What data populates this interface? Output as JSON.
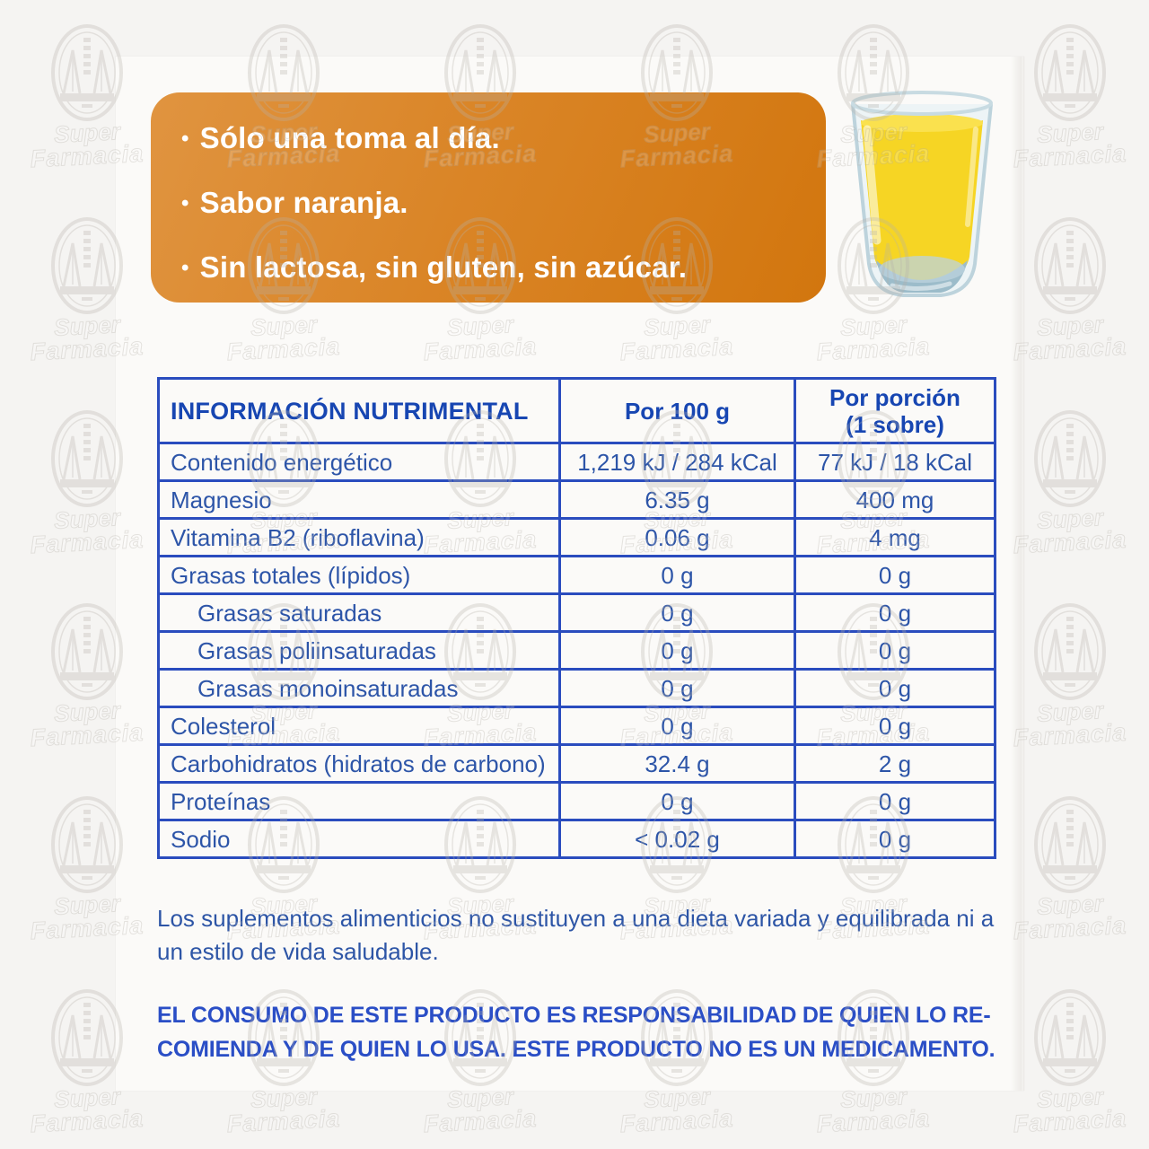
{
  "colors": {
    "accent_orange": "#d77d18",
    "brand_blue": "#2a4cbe",
    "text_blue": "#2d55a8",
    "juice_yellow": "#f6d528"
  },
  "highlights": {
    "bullet": "•",
    "items": [
      "Sólo una toma al día.",
      "Sabor naranja.",
      "Sin lactosa, sin gluten, sin azúcar."
    ]
  },
  "glass": {
    "description": "orange-juice-glass"
  },
  "nutrition_table": {
    "title": "INFORMACIÓN NUTRIMENTAL",
    "col_per_100g": "Por 100 g",
    "col_portion_line1": "Por porción",
    "col_portion_line2": "(1 sobre)",
    "rows": [
      {
        "label": "Contenido energético",
        "per_100g": "1,219 kJ / 284 kCal",
        "per_portion": "77 kJ / 18 kCal"
      },
      {
        "label": "Magnesio",
        "per_100g": "6.35 g",
        "per_portion": "400 mg"
      },
      {
        "label": "Vitamina B2 (riboflavina)",
        "per_100g": "0.06 g",
        "per_portion": "4 mg"
      },
      {
        "label": "Grasas totales (lípidos)",
        "per_100g": "0 g",
        "per_portion": "0 g"
      },
      {
        "label": "Grasas saturadas",
        "per_100g": "0 g",
        "per_portion": "0 g"
      },
      {
        "label": "Grasas poliinsaturadas",
        "per_100g": "0 g",
        "per_portion": "0 g"
      },
      {
        "label": "Grasas monoinsaturadas",
        "per_100g": "0 g",
        "per_portion": "0 g"
      },
      {
        "label": "Colesterol",
        "per_100g": "0 g",
        "per_portion": "0 g"
      },
      {
        "label": "Carbohidratos (hidratos de carbono)",
        "per_100g": "32.4 g",
        "per_portion": "2 g"
      },
      {
        "label": "Proteínas",
        "per_100g": "0 g",
        "per_portion": "0 g"
      },
      {
        "label": "Sodio",
        "per_100g": "< 0.02 g",
        "per_portion": "0 g"
      }
    ]
  },
  "footnote": {
    "lines": [
      "Los suplementos alimenticios no sustituyen a una dieta variada y equilibrada ni a",
      "un estilo de vida saludable."
    ]
  },
  "disclaimer": {
    "lines": [
      "EL CONSUMO DE ESTE PRODUCTO ES RESPONSABILIDAD DE QUIEN LO RE-",
      "COMIENDA Y DE QUIEN LO USA. ESTE PRODUCTO NO ES UN MEDICAMENTO."
    ]
  },
  "watermark": {
    "line1": "Super",
    "line2": "Farmacia"
  }
}
